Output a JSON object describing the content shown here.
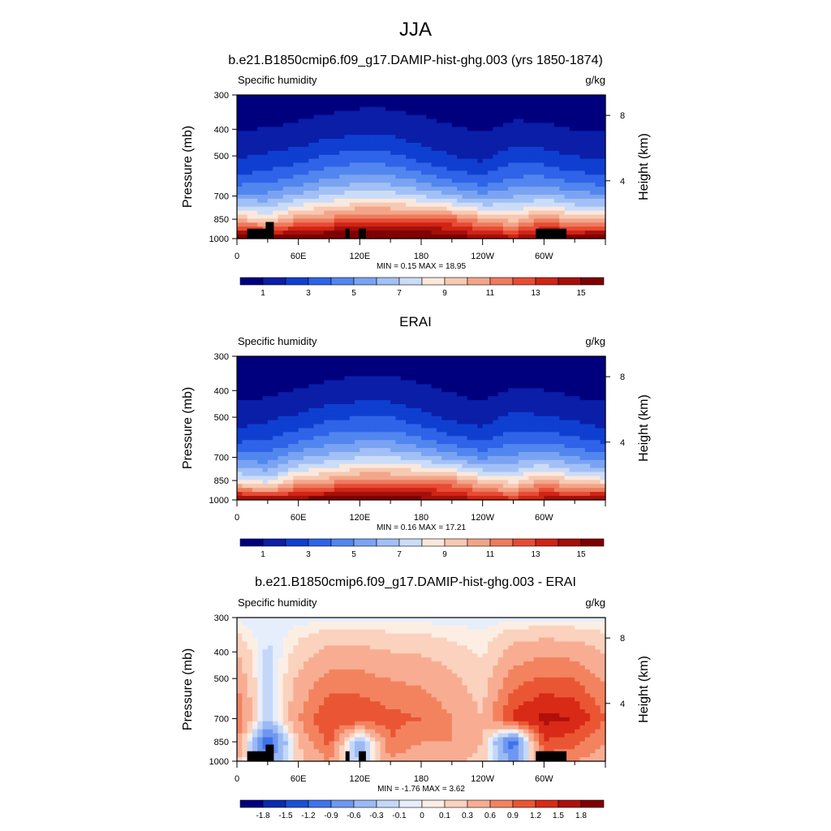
{
  "figure": {
    "title": "JJA",
    "colors": {
      "full_field": [
        "#00007f",
        "#0a1ea8",
        "#0f3fd0",
        "#2f63e8",
        "#5286ef",
        "#7aa3f2",
        "#a2c0f5",
        "#cbdcf8",
        "#fbe8dc",
        "#f7c9b2",
        "#f3a589",
        "#ee7b5e",
        "#e84b34",
        "#cf2416",
        "#a50f0a",
        "#7f0000"
      ],
      "difference": [
        "#00007f",
        "#0a2ab0",
        "#1a4fd8",
        "#3f73ec",
        "#6e97f0",
        "#9bbaf4",
        "#c5d7f8",
        "#e6eefb",
        "#fdeee4",
        "#fbd2bd",
        "#f8ad93",
        "#f3835f",
        "#ea5634",
        "#d82a16",
        "#b0100a",
        "#7f0000"
      ]
    },
    "panels": [
      {
        "title": "b.e21.B1850cmip6.f09_g17.DAMIP-hist-ghg.003 (yrs 1850-1874)",
        "variable_label": "Specific humidity",
        "units_label": "g/kg",
        "y_axis_label": "Pressure (mb)",
        "right_axis_label": "Height (km)",
        "y_tick_labels": [
          "300",
          "400",
          "500",
          "700",
          "850",
          "1000"
        ],
        "right_tick_labels": [
          "8",
          "4"
        ],
        "x_tick_labels": [
          "0",
          "60E",
          "120E",
          "180",
          "120W",
          "60W"
        ],
        "minmax": "MIN =   0.15  MAX =  18.95",
        "colorbar_labels": [
          "1",
          "3",
          "5",
          "7",
          "9",
          "11",
          "13",
          "15"
        ]
      },
      {
        "title": "ERAI",
        "variable_label": "Specific humidity",
        "units_label": "g/kg",
        "y_axis_label": "Pressure (mb)",
        "right_axis_label": "Height (km)",
        "y_tick_labels": [
          "300",
          "400",
          "500",
          "700",
          "850",
          "1000"
        ],
        "right_tick_labels": [
          "8",
          "4"
        ],
        "x_tick_labels": [
          "0",
          "60E",
          "120E",
          "180",
          "120W",
          "60W"
        ],
        "minmax": "MIN =   0.16  MAX =  17.21",
        "colorbar_labels": [
          "1",
          "3",
          "5",
          "7",
          "9",
          "11",
          "13",
          "15"
        ]
      },
      {
        "title": "b.e21.B1850cmip6.f09_g17.DAMIP-hist-ghg.003 - ERAI",
        "variable_label": "Specific humidity",
        "units_label": "g/kg",
        "y_axis_label": "Pressure (mb)",
        "right_axis_label": "Height (km)",
        "y_tick_labels": [
          "300",
          "400",
          "500",
          "700",
          "850",
          "1000"
        ],
        "right_tick_labels": [
          "8",
          "4"
        ],
        "x_tick_labels": [
          "0",
          "60E",
          "120E",
          "180",
          "120W",
          "60W"
        ],
        "minmax": "MIN =  -1.76  MAX =   3.62",
        "colorbar_labels": [
          "-1.8",
          "-1.5",
          "-1.2",
          "-0.9",
          "-0.6",
          "-0.3",
          "-0.1",
          "0",
          "0.1",
          "0.3",
          "0.6",
          "0.9",
          "1.2",
          "1.5",
          "1.8"
        ]
      }
    ]
  },
  "chart_data": [
    {
      "type": "heatmap",
      "title": "b.e21.B1850cmip6.f09_g17.DAMIP-hist-ghg.003 (yrs 1850-1874)",
      "variable": "Specific humidity",
      "units": "g/kg",
      "ylabel": "Pressure (mb)",
      "ylabel_right": "Height (km)",
      "x_ticks": [
        "0",
        "60E",
        "120E",
        "180",
        "120W",
        "60W"
      ],
      "y_ticks": [
        300,
        400,
        500,
        700,
        850,
        1000
      ],
      "y_log_scale": true,
      "xlim": [
        0,
        360
      ],
      "ylim": [
        1000,
        300
      ],
      "levels": [
        1,
        2,
        3,
        4,
        5,
        6,
        7,
        8,
        9,
        10,
        11,
        12,
        13,
        14,
        15
      ],
      "min": 0.15,
      "max": 18.95,
      "lon": [
        0,
        30,
        60,
        90,
        120,
        150,
        180,
        210,
        240,
        270,
        300,
        330,
        360
      ],
      "surface_values": [
        17.0,
        16.0,
        16.5,
        17.0,
        17.5,
        17.0,
        16.5,
        16.0,
        15.0,
        14.5,
        15.5,
        16.0,
        17.0
      ],
      "values_500mb": [
        1.8,
        2.2,
        2.5,
        3.2,
        3.4,
        3.3,
        2.6,
        2.0,
        1.7,
        2.6,
        2.4,
        2.0,
        1.8
      ],
      "values_850mb": [
        10.0,
        9.0,
        11.0,
        11.5,
        12.5,
        12.5,
        12.5,
        12.0,
        10.5,
        9.5,
        11.5,
        10.0,
        10.0
      ],
      "values_300mb": [
        0.4,
        0.4,
        0.5,
        0.6,
        0.7,
        0.7,
        0.6,
        0.5,
        0.4,
        0.5,
        0.5,
        0.4,
        0.4
      ],
      "legend": "colorbar-bottom"
    },
    {
      "type": "heatmap",
      "title": "ERAI",
      "variable": "Specific humidity",
      "units": "g/kg",
      "ylabel": "Pressure (mb)",
      "ylabel_right": "Height (km)",
      "x_ticks": [
        "0",
        "60E",
        "120E",
        "180",
        "120W",
        "60W"
      ],
      "y_ticks": [
        300,
        400,
        500,
        700,
        850,
        1000
      ],
      "y_log_scale": true,
      "xlim": [
        0,
        360
      ],
      "ylim": [
        1000,
        300
      ],
      "levels": [
        1,
        2,
        3,
        4,
        5,
        6,
        7,
        8,
        9,
        10,
        11,
        12,
        13,
        14,
        15
      ],
      "min": 0.16,
      "max": 17.21,
      "lon": [
        0,
        30,
        60,
        90,
        120,
        150,
        180,
        210,
        240,
        270,
        300,
        330,
        360
      ],
      "surface_values": [
        16.0,
        15.0,
        15.5,
        16.0,
        16.5,
        16.0,
        15.5,
        15.0,
        14.0,
        13.5,
        14.5,
        15.0,
        16.0
      ],
      "values_500mb": [
        1.5,
        1.8,
        2.2,
        2.8,
        3.0,
        3.0,
        2.4,
        1.8,
        1.5,
        2.3,
        2.1,
        1.8,
        1.5
      ],
      "values_850mb": [
        8.5,
        7.5,
        10.0,
        10.5,
        11.5,
        11.5,
        11.5,
        11.0,
        9.5,
        8.5,
        10.5,
        9.0,
        8.5
      ],
      "values_300mb": [
        0.3,
        0.3,
        0.4,
        0.5,
        0.6,
        0.6,
        0.5,
        0.4,
        0.3,
        0.4,
        0.4,
        0.3,
        0.3
      ],
      "legend": "colorbar-bottom"
    },
    {
      "type": "heatmap",
      "title": "b.e21.B1850cmip6.f09_g17.DAMIP-hist-ghg.003 - ERAI",
      "variable": "Specific humidity",
      "units": "g/kg",
      "ylabel": "Pressure (mb)",
      "ylabel_right": "Height (km)",
      "x_ticks": [
        "0",
        "60E",
        "120E",
        "180",
        "120W",
        "60W"
      ],
      "y_ticks": [
        300,
        400,
        500,
        700,
        850,
        1000
      ],
      "y_log_scale": true,
      "xlim": [
        0,
        360
      ],
      "ylim": [
        1000,
        300
      ],
      "levels": [
        -1.8,
        -1.5,
        -1.2,
        -0.9,
        -0.6,
        -0.3,
        -0.1,
        0,
        0.1,
        0.3,
        0.6,
        0.9,
        1.2,
        1.5,
        1.8
      ],
      "min": -1.76,
      "max": 3.62,
      "lon": [
        0,
        30,
        60,
        90,
        120,
        150,
        180,
        210,
        240,
        270,
        300,
        330,
        360
      ],
      "values_700mb": [
        0.9,
        -0.3,
        0.6,
        1.2,
        1.2,
        1.0,
        0.9,
        0.6,
        0.3,
        1.3,
        1.6,
        1.5,
        0.9
      ],
      "values_850mb": [
        0.6,
        -1.2,
        0.3,
        1.0,
        -0.6,
        0.9,
        0.6,
        0.6,
        0.3,
        -1.2,
        1.2,
        1.0,
        0.6
      ],
      "legend": "colorbar-bottom"
    }
  ]
}
